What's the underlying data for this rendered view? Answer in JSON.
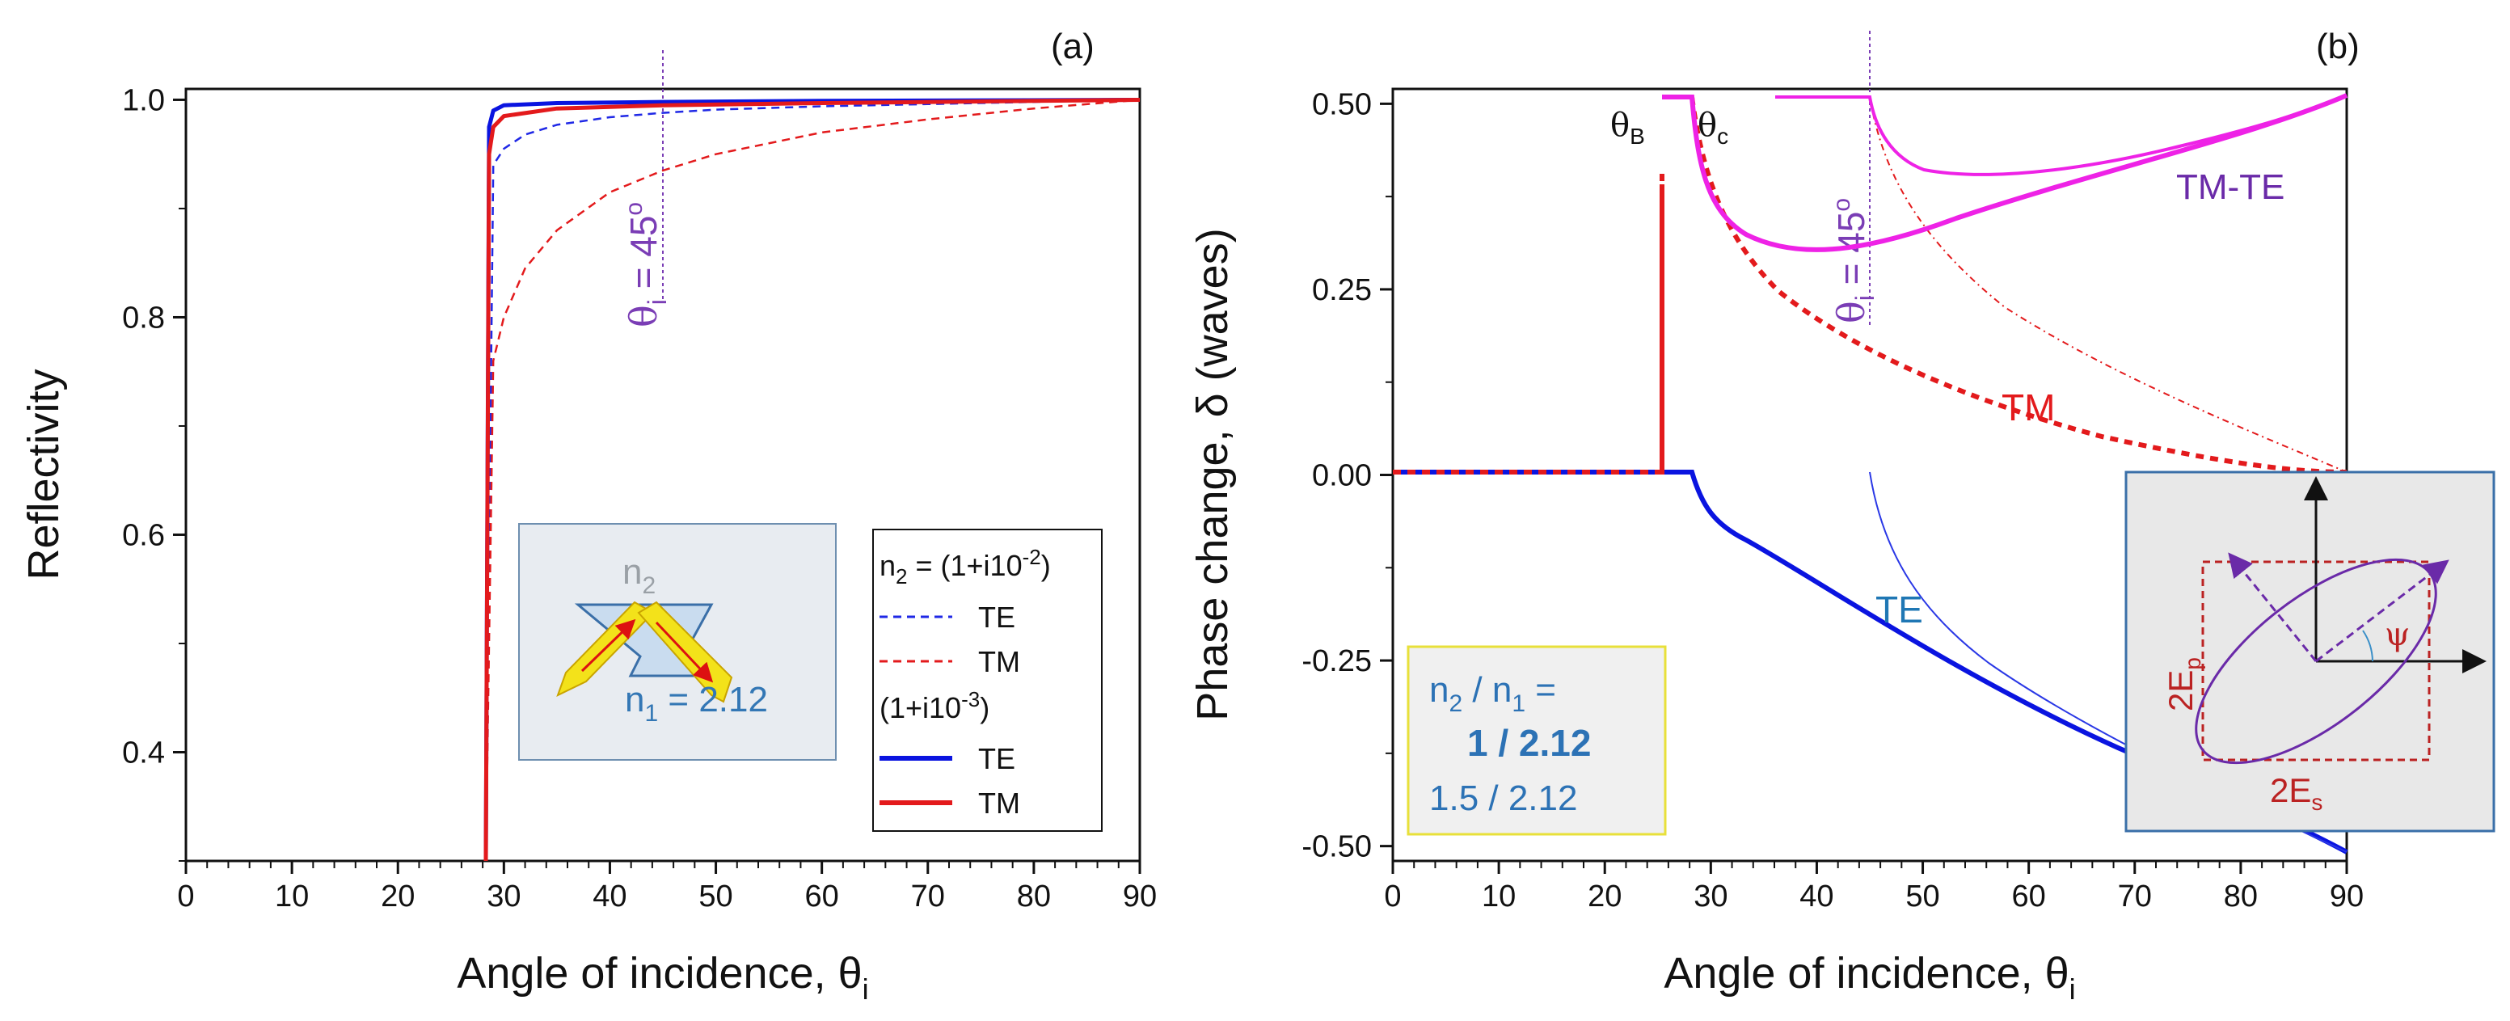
{
  "chart_data": [
    {
      "panel": "(a)",
      "type": "line",
      "xlabel": "Angle of incidence, θi",
      "ylabel": "Reflectivity",
      "xlim": [
        0,
        90
      ],
      "ylim": [
        0.3,
        1.01
      ],
      "x_ticks": [
        0,
        10,
        20,
        30,
        40,
        50,
        60,
        70,
        80,
        90
      ],
      "y_ticks": [
        0.4,
        0.6,
        0.8,
        1.0
      ],
      "series": [
        {
          "name": "TE",
          "group": "n2 = (1+i10^-2)",
          "color": "#1f28e6",
          "style": "dashed",
          "x": [
            28.3,
            29,
            30,
            32,
            35,
            40,
            45,
            50,
            60,
            70,
            80,
            90
          ],
          "y": [
            0.3,
            0.94,
            0.955,
            0.968,
            0.977,
            0.984,
            0.988,
            0.991,
            0.994,
            0.996,
            0.998,
            1.0
          ]
        },
        {
          "name": "TM",
          "group": "n2 = (1+i10^-2)",
          "color": "#e31a1c",
          "style": "dashed",
          "x": [
            28.3,
            29,
            30,
            32,
            35,
            40,
            45,
            50,
            60,
            70,
            80,
            90
          ],
          "y": [
            0.3,
            0.76,
            0.8,
            0.845,
            0.88,
            0.915,
            0.935,
            0.95,
            0.97,
            0.982,
            0.992,
            1.0
          ]
        },
        {
          "name": "TE",
          "group": "(1+i10^-3)",
          "color": "#0a14e0",
          "style": "solid",
          "x": [
            28.3,
            28.6,
            29,
            30,
            35,
            45,
            60,
            90
          ],
          "y": [
            0.3,
            0.975,
            0.99,
            0.995,
            0.997,
            0.998,
            0.999,
            1.0
          ]
        },
        {
          "name": "TM",
          "group": "(1+i10^-3)",
          "color": "#e31a1c",
          "style": "solid",
          "x": [
            28.3,
            28.6,
            29,
            30,
            35,
            45,
            60,
            90
          ],
          "y": [
            0.3,
            0.95,
            0.975,
            0.985,
            0.992,
            0.995,
            0.997,
            1.0
          ]
        }
      ],
      "annotation": {
        "text": "θi = 45°",
        "x": 45
      },
      "inset_label_top": "n2",
      "inset_label_bottom": "n1 = 2.12",
      "legend": [
        "n2 = (1+i10^-2)",
        "TE",
        "TM",
        "(1+i10^-3)",
        "TE",
        "TM"
      ]
    },
    {
      "panel": "(b)",
      "type": "line",
      "xlabel": "Angle of incidence, θi",
      "ylabel": "Phase change, δ (waves)",
      "xlim": [
        0,
        90
      ],
      "ylim": [
        -0.52,
        0.52
      ],
      "x_ticks": [
        0,
        10,
        20,
        30,
        40,
        50,
        60,
        70,
        80,
        90
      ],
      "y_ticks": [
        -0.5,
        -0.25,
        0.0,
        0.25,
        0.5
      ],
      "annotations": [
        "θB",
        "θc",
        "θi = 45°",
        "TM-TE",
        "TM",
        "TE"
      ],
      "inset_box": [
        "n2 / n1 =",
        "1 / 2.12",
        "1.5 / 2.12"
      ],
      "ellipse_labels": [
        "2Ep",
        "2Es",
        "ψ"
      ]
    }
  ],
  "labels": {
    "panel_a": "(a)",
    "panel_b": "(b)",
    "ylabel_a": "Reflectivity",
    "ylabel_b": "Phase change, δ (waves)",
    "xlabel_text": "Angle of incidence, θ",
    "xlabel_sub": "i",
    "angle_tag": "θ",
    "angle_tag_sub": "i",
    "angle_tag_val": " = 45",
    "angle_tag_deg": "o",
    "theta_B": "θ",
    "theta_B_sub": "B",
    "theta_c": "θ",
    "theta_c_sub": "c",
    "tm_te": "TM-TE",
    "tm": "TM",
    "te": "TE",
    "n2": "n",
    "n2_sub": "2",
    "n1": "n",
    "n1_sub": "1",
    "n1_val": " = 2.12",
    "box_line1_a": "n",
    "box_line1_b": "2",
    "box_line1_c": " / n",
    "box_line1_d": "1",
    "box_line1_e": " =",
    "box_line2": "1 / 2.12",
    "box_line3": "1.5 / 2.12",
    "Ep": "2E",
    "Ep_sub": "p",
    "Es": "2E",
    "Es_sub": "s",
    "psi": "ψ",
    "leg_h1": "n",
    "leg_h1_sub": "2",
    "leg_h1_rest": " = (1+i10",
    "leg_h1_sup": "-2",
    "leg_h1_end": ")",
    "leg_h2": "(1+i10",
    "leg_h2_sup": "-3",
    "leg_h2_end": ")",
    "leg_te": "TE",
    "leg_tm": "TM"
  }
}
